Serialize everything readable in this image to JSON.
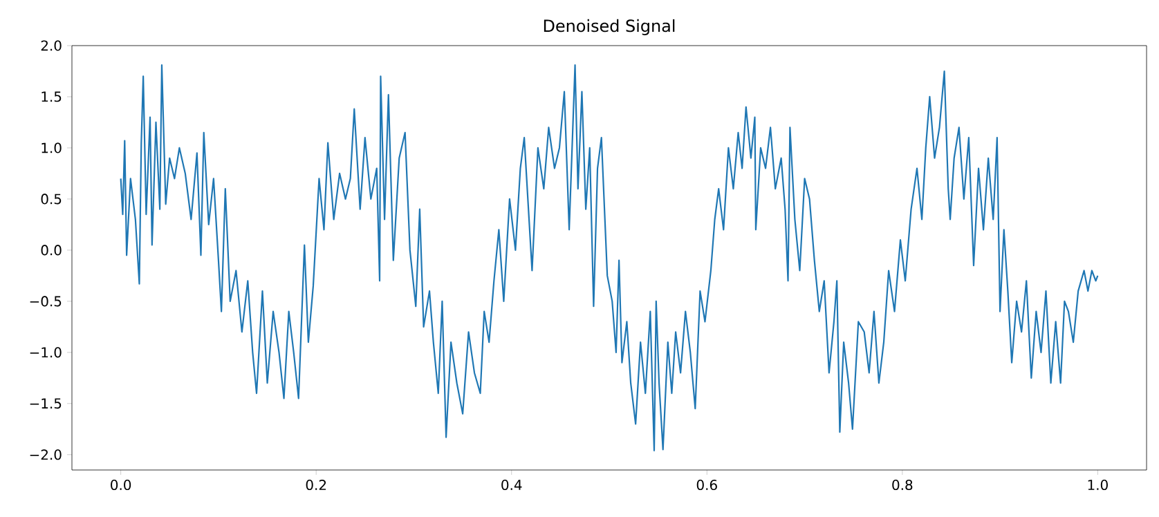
{
  "chart_data": {
    "type": "line",
    "title": "Denoised Signal",
    "x": [
      0.0,
      0.002,
      0.004,
      0.006,
      0.01,
      0.015,
      0.019,
      0.021,
      0.023,
      0.026,
      0.03,
      0.032,
      0.036,
      0.04,
      0.042,
      0.046,
      0.05,
      0.055,
      0.06,
      0.066,
      0.072,
      0.078,
      0.082,
      0.085,
      0.09,
      0.095,
      0.1,
      0.103,
      0.107,
      0.112,
      0.118,
      0.124,
      0.13,
      0.135,
      0.139,
      0.145,
      0.15,
      0.156,
      0.162,
      0.167,
      0.172,
      0.177,
      0.182,
      0.188,
      0.192,
      0.197,
      0.203,
      0.208,
      0.212,
      0.218,
      0.224,
      0.23,
      0.235,
      0.239,
      0.245,
      0.25,
      0.256,
      0.262,
      0.265,
      0.266,
      0.27,
      0.274,
      0.279,
      0.285,
      0.291,
      0.296,
      0.302,
      0.306,
      0.31,
      0.316,
      0.32,
      0.325,
      0.329,
      0.333,
      0.338,
      0.344,
      0.35,
      0.356,
      0.362,
      0.368,
      0.372,
      0.377,
      0.382,
      0.387,
      0.392,
      0.398,
      0.404,
      0.409,
      0.413,
      0.421,
      0.427,
      0.433,
      0.438,
      0.444,
      0.449,
      0.454,
      0.459,
      0.465,
      0.468,
      0.472,
      0.476,
      0.48,
      0.484,
      0.488,
      0.492,
      0.498,
      0.503,
      0.507,
      0.51,
      0.513,
      0.518,
      0.522,
      0.527,
      0.532,
      0.537,
      0.542,
      0.546,
      0.548,
      0.551,
      0.555,
      0.56,
      0.564,
      0.568,
      0.573,
      0.578,
      0.583,
      0.588,
      0.593,
      0.598,
      0.604,
      0.608,
      0.612,
      0.617,
      0.622,
      0.627,
      0.632,
      0.636,
      0.64,
      0.645,
      0.649,
      0.65,
      0.655,
      0.66,
      0.665,
      0.67,
      0.676,
      0.68,
      0.683,
      0.685,
      0.69,
      0.695,
      0.7,
      0.705,
      0.71,
      0.715,
      0.72,
      0.725,
      0.73,
      0.733,
      0.736,
      0.74,
      0.745,
      0.749,
      0.755,
      0.761,
      0.766,
      0.771,
      0.776,
      0.781,
      0.786,
      0.792,
      0.798,
      0.803,
      0.809,
      0.815,
      0.82,
      0.824,
      0.828,
      0.833,
      0.838,
      0.843,
      0.847,
      0.849,
      0.853,
      0.858,
      0.863,
      0.868,
      0.873,
      0.878,
      0.883,
      0.888,
      0.893,
      0.897,
      0.9,
      0.904,
      0.908,
      0.912,
      0.917,
      0.922,
      0.927,
      0.932,
      0.937,
      0.942,
      0.947,
      0.952,
      0.957,
      0.962,
      0.966,
      0.97,
      0.975,
      0.98,
      0.986,
      0.99,
      0.994,
      0.998,
      1.0
    ],
    "series": [
      {
        "color": "#1f77b4",
        "values": [
          0.7,
          0.35,
          1.07,
          -0.05,
          0.7,
          0.3,
          -0.33,
          1.05,
          1.7,
          0.35,
          1.3,
          0.05,
          1.25,
          0.4,
          1.81,
          0.45,
          0.9,
          0.7,
          1.0,
          0.75,
          0.3,
          0.95,
          -0.05,
          1.15,
          0.25,
          0.7,
          -0.1,
          -0.6,
          0.6,
          -0.5,
          -0.2,
          -0.8,
          -0.3,
          -1.0,
          -1.4,
          -0.4,
          -1.3,
          -0.6,
          -1.0,
          -1.45,
          -0.6,
          -1.0,
          -1.45,
          0.05,
          -0.9,
          -0.35,
          0.7,
          0.2,
          1.05,
          0.3,
          0.75,
          0.5,
          0.7,
          1.38,
          0.4,
          1.1,
          0.5,
          0.8,
          -0.3,
          1.7,
          0.3,
          1.52,
          -0.1,
          0.9,
          1.15,
          0.0,
          -0.55,
          0.4,
          -0.75,
          -0.4,
          -0.9,
          -1.4,
          -0.5,
          -1.83,
          -0.9,
          -1.3,
          -1.6,
          -0.8,
          -1.2,
          -1.4,
          -0.6,
          -0.9,
          -0.3,
          0.2,
          -0.5,
          0.5,
          0.0,
          0.8,
          1.1,
          -0.2,
          1.0,
          0.6,
          1.2,
          0.8,
          1.0,
          1.55,
          0.2,
          1.81,
          0.6,
          1.55,
          0.4,
          1.0,
          -0.55,
          0.8,
          1.1,
          -0.25,
          -0.5,
          -1.0,
          -0.1,
          -1.1,
          -0.7,
          -1.3,
          -1.7,
          -0.9,
          -1.4,
          -0.6,
          -1.96,
          -0.5,
          -1.3,
          -1.95,
          -0.9,
          -1.4,
          -0.8,
          -1.2,
          -0.6,
          -1.0,
          -1.55,
          -0.4,
          -0.7,
          -0.2,
          0.3,
          0.6,
          0.2,
          1.0,
          0.6,
          1.15,
          0.8,
          1.4,
          0.9,
          1.3,
          0.2,
          1.0,
          0.8,
          1.2,
          0.6,
          0.9,
          0.4,
          -0.3,
          1.2,
          0.3,
          -0.2,
          0.7,
          0.5,
          -0.1,
          -0.6,
          -0.3,
          -1.2,
          -0.7,
          -0.3,
          -1.78,
          -0.9,
          -1.3,
          -1.75,
          -0.7,
          -0.8,
          -1.2,
          -0.6,
          -1.3,
          -0.9,
          -0.2,
          -0.6,
          0.1,
          -0.3,
          0.4,
          0.8,
          0.3,
          1.0,
          1.5,
          0.9,
          1.2,
          1.75,
          0.6,
          0.3,
          0.9,
          1.2,
          0.5,
          1.1,
          -0.15,
          0.8,
          0.2,
          0.9,
          0.3,
          1.1,
          -0.6,
          0.2,
          -0.4,
          -1.1,
          -0.5,
          -0.8,
          -0.3,
          -1.25,
          -0.6,
          -1.0,
          -0.4,
          -1.3,
          -0.7,
          -1.3,
          -0.5,
          -0.6,
          -0.9,
          -0.4,
          -0.2,
          -0.4,
          -0.2,
          -0.3,
          -0.25
        ]
      }
    ],
    "xlim": [
      -0.05,
      1.05
    ],
    "ylim": [
      -2.15,
      2.0
    ],
    "xticks": [
      {
        "value": 0.0,
        "label": "0.0"
      },
      {
        "value": 0.2,
        "label": "0.2"
      },
      {
        "value": 0.4,
        "label": "0.4"
      },
      {
        "value": 0.6,
        "label": "0.6"
      },
      {
        "value": 0.8,
        "label": "0.8"
      },
      {
        "value": 1.0,
        "label": "1.0"
      }
    ],
    "yticks": [
      {
        "value": -2.0,
        "label": "−2.0"
      },
      {
        "value": -1.5,
        "label": "−1.5"
      },
      {
        "value": -1.0,
        "label": "−1.0"
      },
      {
        "value": -0.5,
        "label": "−0.5"
      },
      {
        "value": 0.0,
        "label": "0.0"
      },
      {
        "value": 0.5,
        "label": "0.5"
      },
      {
        "value": 1.0,
        "label": "1.0"
      },
      {
        "value": 1.5,
        "label": "1.5"
      },
      {
        "value": 2.0,
        "label": "2.0"
      }
    ],
    "grid": false,
    "marker": "none",
    "line_style": "solid"
  }
}
